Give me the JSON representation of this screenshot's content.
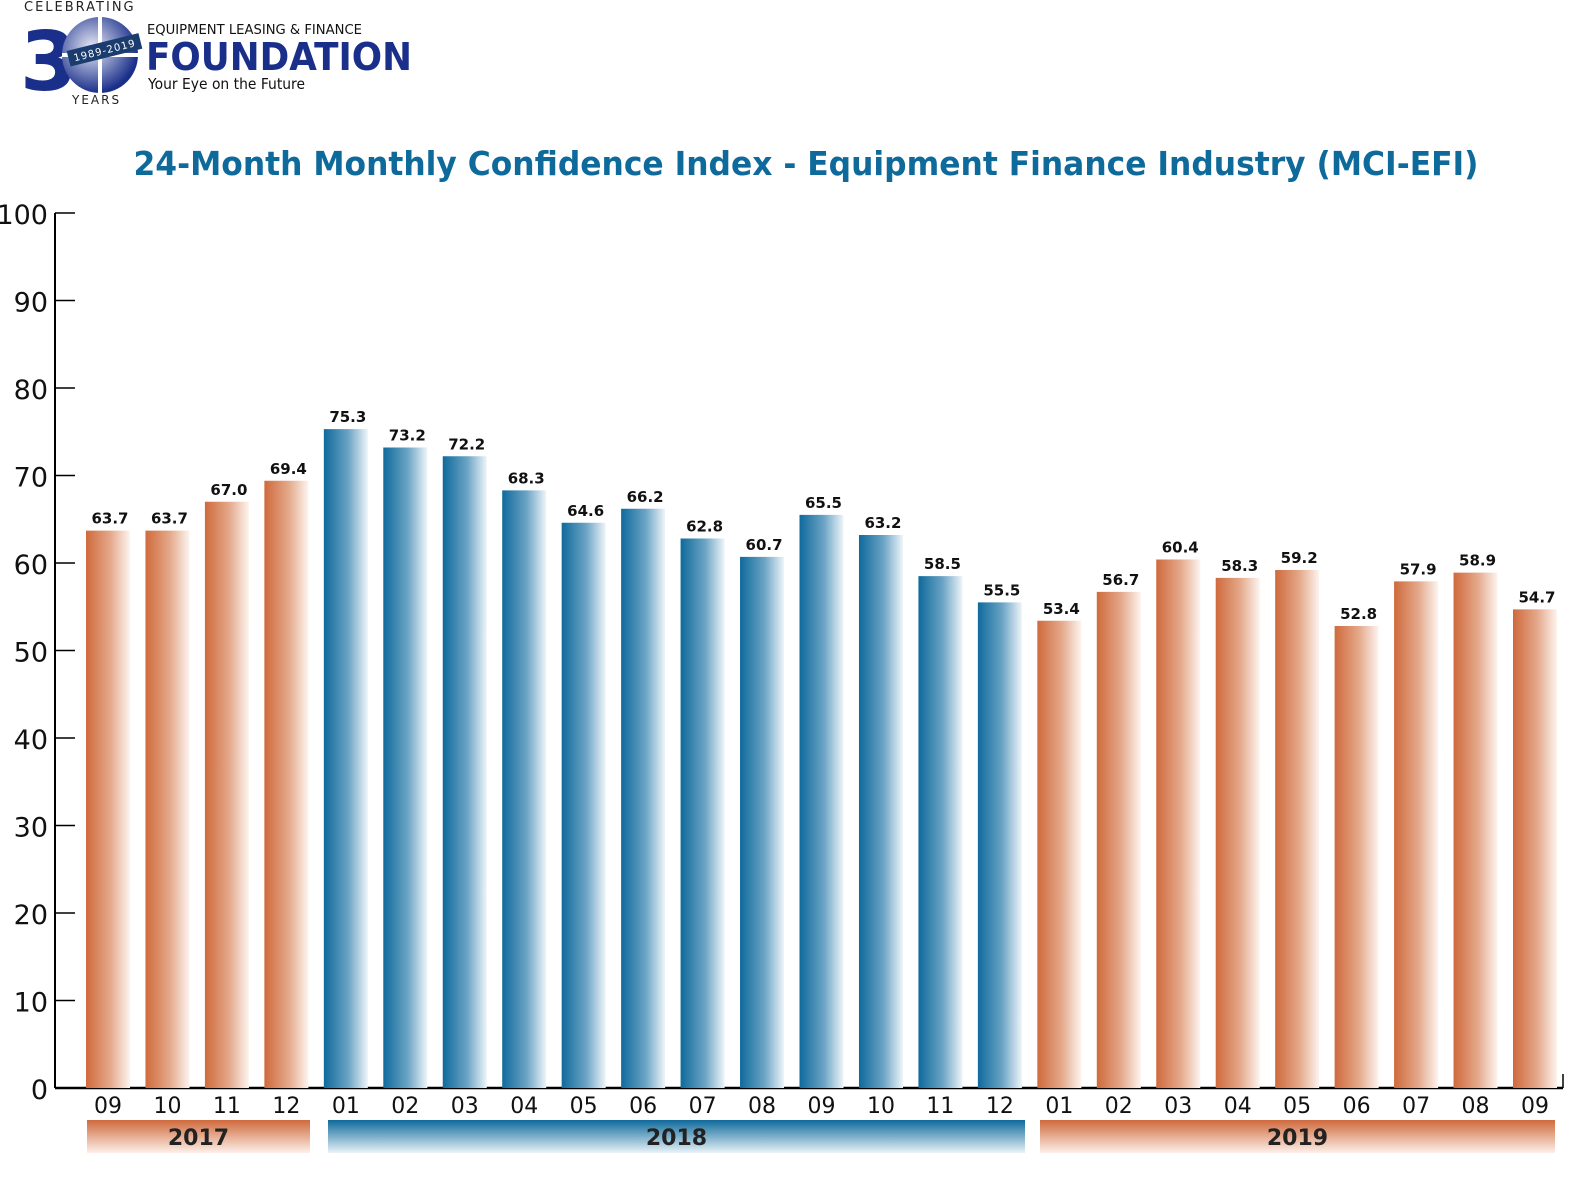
{
  "logo": {
    "celebrating": "CELEBRATING",
    "number": "30",
    "years_range": "1989-2019",
    "years": "YEARS",
    "org_line": "EQUIPMENT LEASING & FINANCE",
    "org_name": "FOUNDATION",
    "tagline": "Your Eye on the Future"
  },
  "colors": {
    "orange": "#cf6a3c",
    "blue": "#0f6a9c",
    "title": "#0f6a9c",
    "logo_blue": "#1a2f8a"
  },
  "chart_data": {
    "type": "bar",
    "title": "24-Month Monthly Confidence Index - Equipment Finance Industry (MCI-EFI)",
    "xlabel": "",
    "ylabel": "",
    "ylim": [
      0,
      100
    ],
    "yticks": [
      "0",
      "10",
      "20",
      "30",
      "40",
      "50",
      "60",
      "70",
      "80",
      "90",
      "100"
    ],
    "grid": false,
    "categories": [
      "09",
      "10",
      "11",
      "12",
      "01",
      "02",
      "03",
      "04",
      "05",
      "06",
      "07",
      "08",
      "09",
      "10",
      "11",
      "12",
      "01",
      "02",
      "03",
      "04",
      "05",
      "06",
      "07",
      "08",
      "09"
    ],
    "year_of_bar": [
      "2017",
      "2017",
      "2017",
      "2017",
      "2018",
      "2018",
      "2018",
      "2018",
      "2018",
      "2018",
      "2018",
      "2018",
      "2018",
      "2018",
      "2018",
      "2018",
      "2019",
      "2019",
      "2019",
      "2019",
      "2019",
      "2019",
      "2019",
      "2019",
      "2019"
    ],
    "values": [
      63.7,
      63.7,
      67.0,
      69.4,
      75.3,
      73.2,
      72.2,
      68.3,
      64.6,
      66.2,
      62.8,
      60.7,
      65.5,
      63.2,
      58.5,
      55.5,
      53.4,
      56.7,
      60.4,
      58.3,
      59.2,
      52.8,
      57.9,
      58.9,
      54.7
    ],
    "data_labels": [
      "63.7",
      "63.7",
      "67.0",
      "69.4",
      "75.3",
      "73.2",
      "72.2",
      "68.3",
      "64.6",
      "66.2",
      "62.8",
      "60.7",
      "65.5",
      "63.2",
      "58.5",
      "55.5",
      "53.4",
      "56.7",
      "60.4",
      "58.3",
      "59.2",
      "52.8",
      "57.9",
      "58.9",
      "54.7"
    ],
    "year_groups": [
      {
        "label": "2017",
        "color": "orange"
      },
      {
        "label": "2018",
        "color": "blue"
      },
      {
        "label": "2019",
        "color": "orange"
      }
    ]
  }
}
